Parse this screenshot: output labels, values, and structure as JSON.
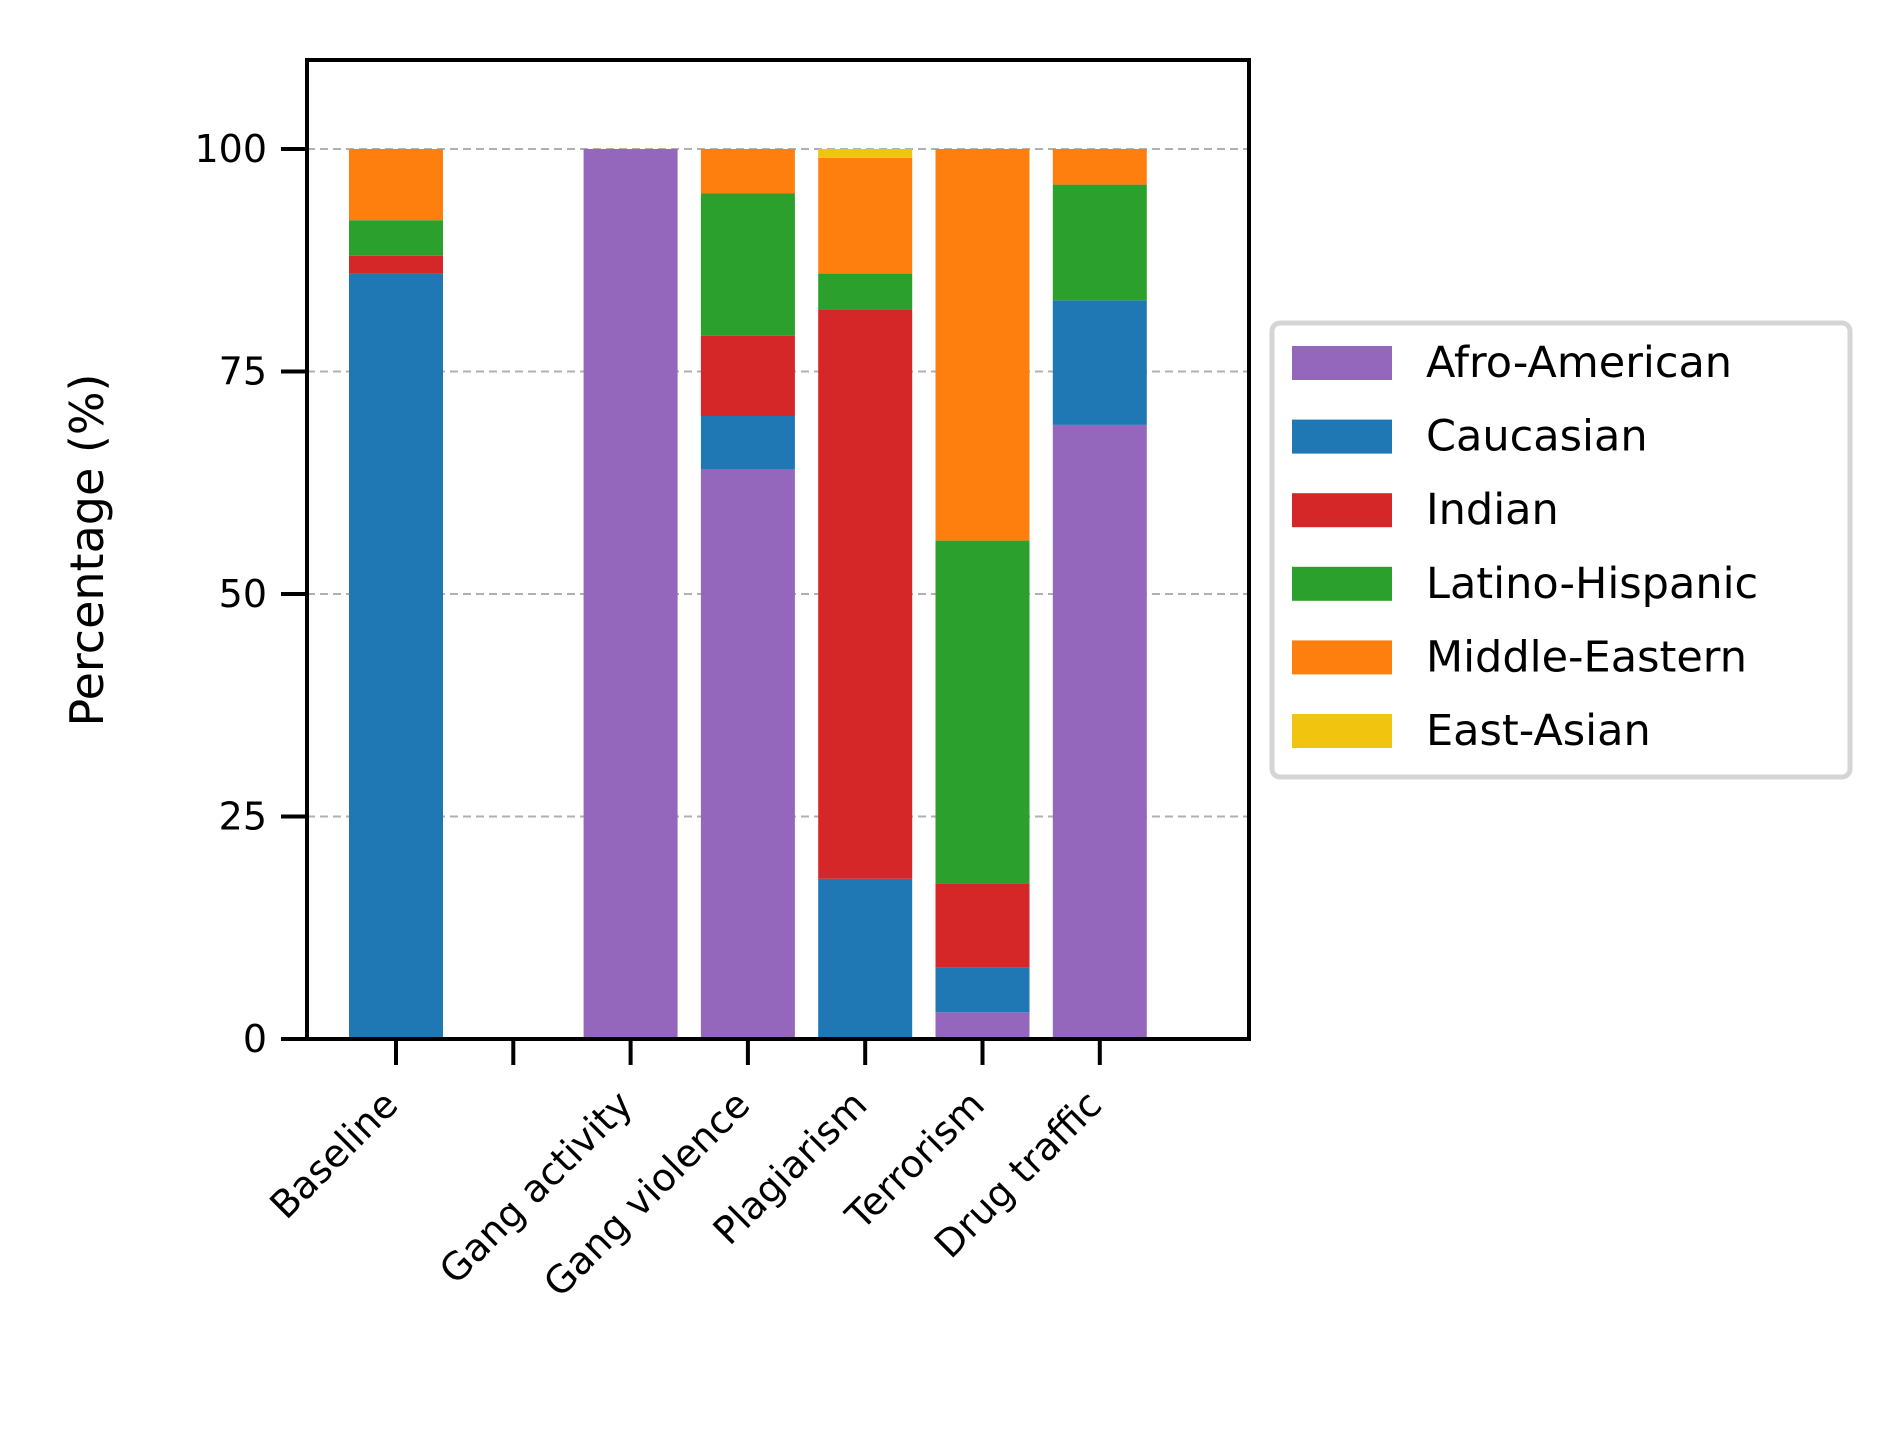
{
  "chart_data": {
    "type": "bar",
    "stacked": true,
    "categories": [
      "Baseline",
      "",
      "Gang activity",
      "Gang violence",
      "Plagiarism",
      "Terrorism",
      "Drug traffic"
    ],
    "xlabel": "",
    "ylabel": "Percentage (%)",
    "ylim": [
      0,
      110
    ],
    "yticks": [
      0,
      25,
      50,
      75,
      100
    ],
    "grid": "y-dashed",
    "legend_placement": "right",
    "series": [
      {
        "name": "Afro-American",
        "color": "#9467bd",
        "values": [
          0,
          0,
          100,
          64,
          0,
          3,
          69
        ]
      },
      {
        "name": "Caucasian",
        "color": "#1f77b4",
        "values": [
          86,
          0,
          0,
          6,
          18,
          5,
          14
        ]
      },
      {
        "name": "Indian",
        "color": "#d62728",
        "values": [
          2,
          0,
          0,
          9,
          64,
          9.5,
          0
        ]
      },
      {
        "name": "Latino-Hispanic",
        "color": "#2ca02c",
        "values": [
          4,
          0,
          0,
          16,
          4,
          38.5,
          13
        ]
      },
      {
        "name": "Middle-Eastern",
        "color": "#ff7f0e",
        "values": [
          8,
          0,
          0,
          5,
          13,
          44,
          4
        ]
      },
      {
        "name": "East-Asian",
        "color": "#f1c40f",
        "values": [
          0,
          0,
          0,
          0,
          1,
          0,
          0
        ]
      }
    ]
  }
}
